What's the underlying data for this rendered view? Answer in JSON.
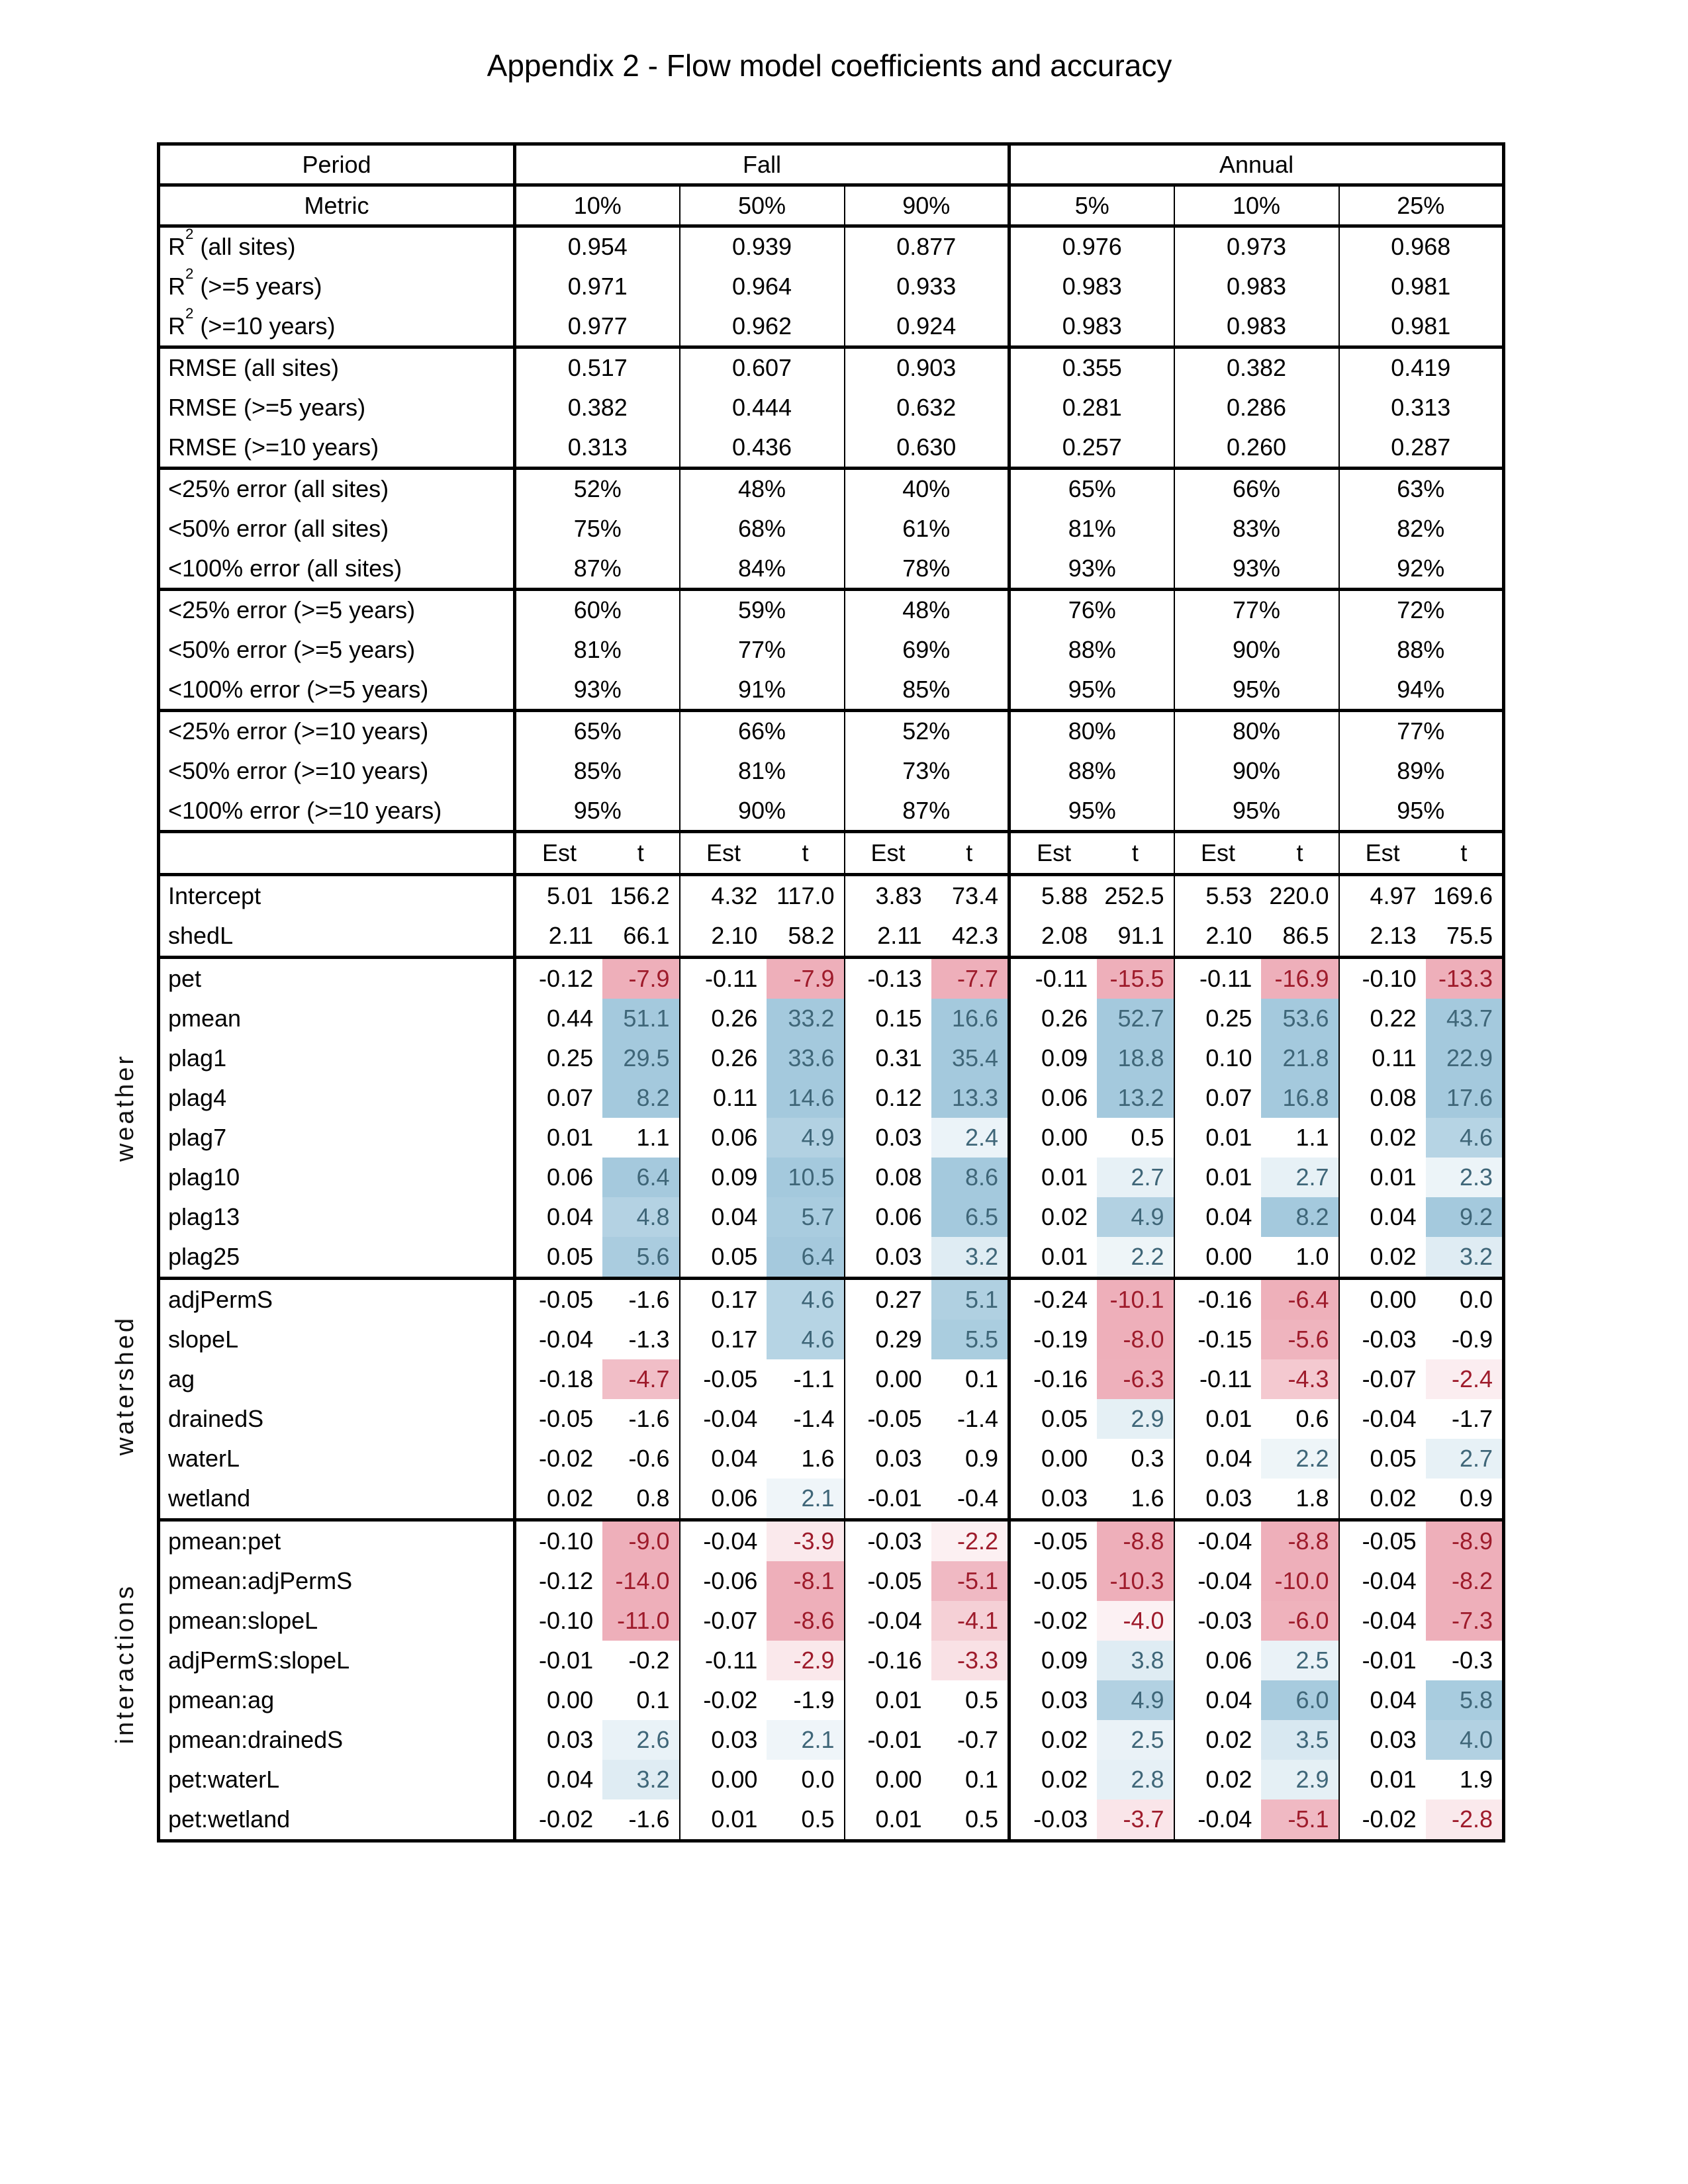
{
  "title": "Appendix 2 - Flow model coefficients and accuracy",
  "colors": {
    "pos_fill": "#a4c9dd",
    "neg_fill": "#eeafba",
    "pos_text": "#3f6678",
    "neg_text": "#9e1b2b",
    "border": "#000000"
  },
  "shading": {
    "sig_threshold": 1.96,
    "stops": [
      [
        1.96,
        0.16
      ],
      [
        3,
        0.3
      ],
      [
        4,
        0.55
      ],
      [
        4.6,
        0.8
      ],
      [
        5.5,
        0.93
      ],
      [
        6.5,
        1.0
      ]
    ]
  },
  "table": {
    "period_label": "Period",
    "metric_label": "Metric",
    "est_header": "Est",
    "t_header": "t",
    "period_groups": [
      {
        "name": "Fall",
        "quantiles": [
          "10%",
          "50%",
          "90%"
        ]
      },
      {
        "name": "Annual",
        "quantiles": [
          "5%",
          "10%",
          "25%"
        ]
      }
    ],
    "metric_sections": [
      [
        {
          "label_pre": "R",
          "label_sup": "2",
          "label_post": " (all sites)",
          "values": [
            "0.954",
            "0.939",
            "0.877",
            "0.976",
            "0.973",
            "0.968"
          ]
        },
        {
          "label_pre": "R",
          "label_sup": "2",
          "label_post": " (>=5 years)",
          "values": [
            "0.971",
            "0.964",
            "0.933",
            "0.983",
            "0.983",
            "0.981"
          ]
        },
        {
          "label_pre": "R",
          "label_sup": "2",
          "label_post": " (>=10 years)",
          "values": [
            "0.977",
            "0.962",
            "0.924",
            "0.983",
            "0.983",
            "0.981"
          ]
        }
      ],
      [
        {
          "label": "RMSE (all sites)",
          "values": [
            "0.517",
            "0.607",
            "0.903",
            "0.355",
            "0.382",
            "0.419"
          ]
        },
        {
          "label": "RMSE (>=5 years)",
          "values": [
            "0.382",
            "0.444",
            "0.632",
            "0.281",
            "0.286",
            "0.313"
          ]
        },
        {
          "label": "RMSE (>=10 years)",
          "values": [
            "0.313",
            "0.436",
            "0.630",
            "0.257",
            "0.260",
            "0.287"
          ]
        }
      ],
      [
        {
          "label": "<25% error (all sites)",
          "values": [
            "52%",
            "48%",
            "40%",
            "65%",
            "66%",
            "63%"
          ]
        },
        {
          "label": "<50% error (all sites)",
          "values": [
            "75%",
            "68%",
            "61%",
            "81%",
            "83%",
            "82%"
          ]
        },
        {
          "label": "<100% error (all sites)",
          "values": [
            "87%",
            "84%",
            "78%",
            "93%",
            "93%",
            "92%"
          ]
        }
      ],
      [
        {
          "label": "<25% error (>=5 years)",
          "values": [
            "60%",
            "59%",
            "48%",
            "76%",
            "77%",
            "72%"
          ]
        },
        {
          "label": "<50% error (>=5 years)",
          "values": [
            "81%",
            "77%",
            "69%",
            "88%",
            "90%",
            "88%"
          ]
        },
        {
          "label": "<100% error (>=5 years)",
          "values": [
            "93%",
            "91%",
            "85%",
            "95%",
            "95%",
            "94%"
          ]
        }
      ],
      [
        {
          "label": "<25% error (>=10 years)",
          "values": [
            "65%",
            "66%",
            "52%",
            "80%",
            "80%",
            "77%"
          ]
        },
        {
          "label": "<50% error (>=10 years)",
          "values": [
            "85%",
            "81%",
            "73%",
            "88%",
            "90%",
            "89%"
          ]
        },
        {
          "label": "<100% error (>=10 years)",
          "values": [
            "95%",
            "90%",
            "87%",
            "95%",
            "95%",
            "95%"
          ]
        }
      ]
    ],
    "coef_sections": [
      {
        "group": "",
        "shaded": false,
        "rows": [
          {
            "label": "Intercept",
            "cells": [
              [
                "5.01",
                "156.2"
              ],
              [
                "4.32",
                "117.0"
              ],
              [
                "3.83",
                "73.4"
              ],
              [
                "5.88",
                "252.5"
              ],
              [
                "5.53",
                "220.0"
              ],
              [
                "4.97",
                "169.6"
              ]
            ]
          },
          {
            "label": "shedL",
            "cells": [
              [
                "2.11",
                "66.1"
              ],
              [
                "2.10",
                "58.2"
              ],
              [
                "2.11",
                "42.3"
              ],
              [
                "2.08",
                "91.1"
              ],
              [
                "2.10",
                "86.5"
              ],
              [
                "2.13",
                "75.5"
              ]
            ]
          }
        ]
      },
      {
        "group": "weather",
        "shaded": true,
        "rows": [
          {
            "label": "pet",
            "cells": [
              [
                "-0.12",
                "-7.9"
              ],
              [
                "-0.11",
                "-7.9"
              ],
              [
                "-0.13",
                "-7.7"
              ],
              [
                "-0.11",
                "-15.5"
              ],
              [
                "-0.11",
                "-16.9"
              ],
              [
                "-0.10",
                "-13.3"
              ]
            ]
          },
          {
            "label": "pmean",
            "cells": [
              [
                "0.44",
                "51.1"
              ],
              [
                "0.26",
                "33.2"
              ],
              [
                "0.15",
                "16.6"
              ],
              [
                "0.26",
                "52.7"
              ],
              [
                "0.25",
                "53.6"
              ],
              [
                "0.22",
                "43.7"
              ]
            ]
          },
          {
            "label": "plag1",
            "cells": [
              [
                "0.25",
                "29.5"
              ],
              [
                "0.26",
                "33.6"
              ],
              [
                "0.31",
                "35.4"
              ],
              [
                "0.09",
                "18.8"
              ],
              [
                "0.10",
                "21.8"
              ],
              [
                "0.11",
                "22.9"
              ]
            ]
          },
          {
            "label": "plag4",
            "cells": [
              [
                "0.07",
                "8.2"
              ],
              [
                "0.11",
                "14.6"
              ],
              [
                "0.12",
                "13.3"
              ],
              [
                "0.06",
                "13.2"
              ],
              [
                "0.07",
                "16.8"
              ],
              [
                "0.08",
                "17.6"
              ]
            ]
          },
          {
            "label": "plag7",
            "cells": [
              [
                "0.01",
                "1.1"
              ],
              [
                "0.06",
                "4.9"
              ],
              [
                "0.03",
                "2.4"
              ],
              [
                "0.00",
                "0.5"
              ],
              [
                "0.01",
                "1.1"
              ],
              [
                "0.02",
                "4.6"
              ]
            ]
          },
          {
            "label": "plag10",
            "cells": [
              [
                "0.06",
                "6.4"
              ],
              [
                "0.09",
                "10.5"
              ],
              [
                "0.08",
                "8.6"
              ],
              [
                "0.01",
                "2.7"
              ],
              [
                "0.01",
                "2.7"
              ],
              [
                "0.01",
                "2.3"
              ]
            ]
          },
          {
            "label": "plag13",
            "cells": [
              [
                "0.04",
                "4.8"
              ],
              [
                "0.04",
                "5.7"
              ],
              [
                "0.06",
                "6.5"
              ],
              [
                "0.02",
                "4.9"
              ],
              [
                "0.04",
                "8.2"
              ],
              [
                "0.04",
                "9.2"
              ]
            ]
          },
          {
            "label": "plag25",
            "cells": [
              [
                "0.05",
                "5.6"
              ],
              [
                "0.05",
                "6.4"
              ],
              [
                "0.03",
                "3.2"
              ],
              [
                "0.01",
                "2.2"
              ],
              [
                "0.00",
                "1.0"
              ],
              [
                "0.02",
                "3.2"
              ]
            ]
          }
        ]
      },
      {
        "group": "watershed",
        "shaded": true,
        "rows": [
          {
            "label": "adjPermS",
            "cells": [
              [
                "-0.05",
                "-1.6"
              ],
              [
                "0.17",
                "4.6"
              ],
              [
                "0.27",
                "5.1"
              ],
              [
                "-0.24",
                "-10.1"
              ],
              [
                "-0.16",
                "-6.4"
              ],
              [
                "0.00",
                "0.0"
              ]
            ]
          },
          {
            "label": "slopeL",
            "cells": [
              [
                "-0.04",
                "-1.3"
              ],
              [
                "0.17",
                "4.6"
              ],
              [
                "0.29",
                "5.5"
              ],
              [
                "-0.19",
                "-8.0"
              ],
              [
                "-0.15",
                "-5.6"
              ],
              [
                "-0.03",
                "-0.9"
              ]
            ]
          },
          {
            "label": "ag",
            "cells": [
              [
                "-0.18",
                "-4.7"
              ],
              [
                "-0.05",
                "-1.1"
              ],
              [
                "0.00",
                "0.1"
              ],
              [
                "-0.16",
                "-6.3"
              ],
              [
                "-0.11",
                "-4.3"
              ],
              [
                "-0.07",
                "-2.4"
              ]
            ]
          },
          {
            "label": "drainedS",
            "cells": [
              [
                "-0.05",
                "-1.6"
              ],
              [
                "-0.04",
                "-1.4"
              ],
              [
                "-0.05",
                "-1.4"
              ],
              [
                "0.05",
                "2.9"
              ],
              [
                "0.01",
                "0.6"
              ],
              [
                "-0.04",
                "-1.7"
              ]
            ]
          },
          {
            "label": "waterL",
            "cells": [
              [
                "-0.02",
                "-0.6"
              ],
              [
                "0.04",
                "1.6"
              ],
              [
                "0.03",
                "0.9"
              ],
              [
                "0.00",
                "0.3"
              ],
              [
                "0.04",
                "2.2"
              ],
              [
                "0.05",
                "2.7"
              ]
            ]
          },
          {
            "label": "wetland",
            "cells": [
              [
                "0.02",
                "0.8"
              ],
              [
                "0.06",
                "2.1"
              ],
              [
                "-0.01",
                "-0.4"
              ],
              [
                "0.03",
                "1.6"
              ],
              [
                "0.03",
                "1.8"
              ],
              [
                "0.02",
                "0.9"
              ]
            ]
          }
        ]
      },
      {
        "group": "interactions",
        "shaded": true,
        "rows": [
          {
            "label": "pmean:pet",
            "cells": [
              [
                "-0.10",
                "-9.0"
              ],
              [
                "-0.04",
                "-3.9",
                0.28
              ],
              [
                "-0.03",
                "-2.2"
              ],
              [
                "-0.05",
                "-8.8"
              ],
              [
                "-0.04",
                "-8.8"
              ],
              [
                "-0.05",
                "-8.9"
              ]
            ]
          },
          {
            "label": "pmean:adjPermS",
            "cells": [
              [
                "-0.12",
                "-14.0"
              ],
              [
                "-0.06",
                "-8.1"
              ],
              [
                "-0.05",
                "-5.1"
              ],
              [
                "-0.05",
                "-10.3"
              ],
              [
                "-0.04",
                "-10.0"
              ],
              [
                "-0.04",
                "-8.2"
              ]
            ]
          },
          {
            "label": "pmean:slopeL",
            "cells": [
              [
                "-0.10",
                "-11.0"
              ],
              [
                "-0.07",
                "-8.6"
              ],
              [
                "-0.04",
                "-4.1"
              ],
              [
                "-0.02",
                "-4.0",
                0.18
              ],
              [
                "-0.03",
                "-6.0"
              ],
              [
                "-0.04",
                "-7.3"
              ]
            ]
          },
          {
            "label": "adjPermS:slopeL",
            "cells": [
              [
                "-0.01",
                "-0.2"
              ],
              [
                "-0.11",
                "-2.9"
              ],
              [
                "-0.16",
                "-3.3"
              ],
              [
                "0.09",
                "3.8",
                0.35
              ],
              [
                "0.06",
                "2.5"
              ],
              [
                "-0.01",
                "-0.3"
              ]
            ]
          },
          {
            "label": "pmean:ag",
            "cells": [
              [
                "0.00",
                "0.1"
              ],
              [
                "-0.02",
                "-1.9"
              ],
              [
                "0.01",
                "0.5"
              ],
              [
                "0.03",
                "4.9"
              ],
              [
                "0.04",
                "6.0"
              ],
              [
                "0.04",
                "5.8"
              ]
            ]
          },
          {
            "label": "pmean:drainedS",
            "cells": [
              [
                "0.03",
                "2.6"
              ],
              [
                "0.03",
                "2.1"
              ],
              [
                "-0.01",
                "-0.7"
              ],
              [
                "0.02",
                "2.5"
              ],
              [
                "0.02",
                "3.5"
              ],
              [
                "0.03",
                "4.0",
                0.85
              ]
            ]
          },
          {
            "label": "pet:waterL",
            "cells": [
              [
                "0.04",
                "3.2"
              ],
              [
                "0.00",
                "0.0"
              ],
              [
                "0.00",
                "0.1"
              ],
              [
                "0.02",
                "2.8"
              ],
              [
                "0.02",
                "2.9"
              ],
              [
                "0.01",
                "1.9"
              ]
            ]
          },
          {
            "label": "pet:wetland",
            "cells": [
              [
                "-0.02",
                "-1.6"
              ],
              [
                "0.01",
                "0.5"
              ],
              [
                "0.01",
                "0.5"
              ],
              [
                "-0.03",
                "-3.7",
                0.32
              ],
              [
                "-0.04",
                "-5.1"
              ],
              [
                "-0.02",
                "-2.8"
              ]
            ]
          }
        ]
      }
    ]
  }
}
